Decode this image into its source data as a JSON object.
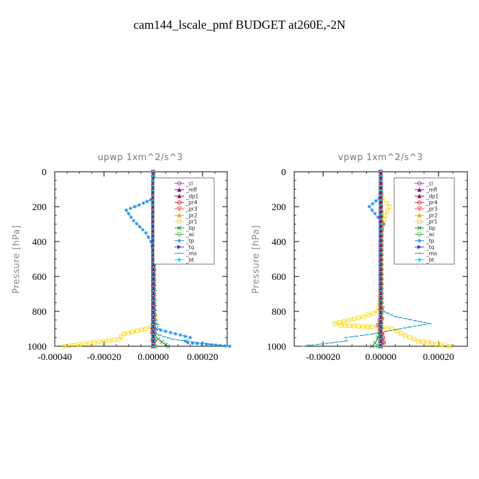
{
  "figure": {
    "title": "cam144_lscale_pmf  BUDGET at260E,-2N"
  },
  "legend_entries": [
    {
      "label": "_cl",
      "color": "#8e44ad",
      "marker": "circle"
    },
    {
      "label": "_mfl",
      "color": "#8b008b",
      "marker": "triangle"
    },
    {
      "label": "_dp1",
      "color": "#a0103a",
      "marker": "triangle"
    },
    {
      "label": "_pr4",
      "color": "#e0202a",
      "marker": "circle"
    },
    {
      "label": "_pr3",
      "color": "#ff4040",
      "marker": "triangle-down"
    },
    {
      "label": "_pr2",
      "color": "#ffa500",
      "marker": "triangle"
    },
    {
      "label": "_pr1",
      "color": "#ffd700",
      "marker": "square"
    },
    {
      "label": "_bp",
      "color": "#228b22",
      "marker": "x"
    },
    {
      "label": "_ac",
      "color": "#32cd32",
      "marker": "circle"
    },
    {
      "label": "_tp",
      "color": "#1e90ff",
      "marker": "star"
    },
    {
      "label": "_tq",
      "color": "#3a3acd",
      "marker": "triangle-right"
    },
    {
      "label": "_mo",
      "color": "#1a9ec9",
      "marker": "dash"
    },
    {
      "label": "_bt",
      "color": "#00e5ee",
      "marker": "diamond"
    }
  ],
  "chart_data": [
    {
      "type": "line",
      "title": "upwp   1xm^2/s^3",
      "ylabel": "Pressure [hPa]",
      "xlabel": "",
      "xlim": [
        -0.0004,
        0.0003
      ],
      "ylim": [
        1000,
        0
      ],
      "xticks": [
        "-0.00040",
        "-0.00020",
        "0.00000",
        "0.00020"
      ],
      "xtick_values": [
        -0.0004,
        -0.0002,
        0.0,
        0.0002
      ],
      "yticks": [
        "0",
        "200",
        "400",
        "600",
        "800",
        "1000"
      ],
      "ytick_values": [
        0,
        200,
        400,
        600,
        800,
        1000
      ],
      "legend_position": "upper-right",
      "series": [
        {
          "name": "_pr1",
          "x": [
            0,
            5e-06,
            2e-05,
            3e-05,
            1e-05,
            0,
            0,
            0,
            1e-05,
            1e-05,
            -3e-05,
            -0.00012,
            -0.00014,
            -0.00036
          ],
          "y": [
            100,
            150,
            180,
            230,
            280,
            350,
            500,
            800,
            850,
            880,
            900,
            930,
            960,
            1000
          ]
        },
        {
          "name": "_tp",
          "x": [
            0,
            5e-06,
            -4e-05,
            -0.00011,
            -8e-05,
            -3e-05,
            -1e-05,
            0,
            0,
            0,
            1e-05,
            0.00015,
            0.00013,
            0.00014,
            0.00031
          ],
          "y": [
            100,
            150,
            180,
            220,
            280,
            350,
            400,
            450,
            800,
            850,
            900,
            950,
            970,
            980,
            1000
          ]
        },
        {
          "name": "_mo",
          "x": [
            0,
            0,
            1e-05,
            2e-05,
            1e-05,
            8e-05,
            0.0003
          ],
          "y": [
            100,
            400,
            850,
            900,
            930,
            960,
            1000
          ]
        },
        {
          "name": "_bp",
          "x": [
            0,
            0,
            5e-06,
            2e-05,
            5e-05,
            6e-05
          ],
          "y": [
            100,
            900,
            930,
            960,
            990,
            1000
          ]
        },
        {
          "name": "_ac",
          "x": [
            0,
            0,
            5e-06,
            1e-05
          ],
          "y": [
            100,
            900,
            960,
            1000
          ]
        },
        {
          "name": "_pr2",
          "x": [
            0,
            5e-06,
            5e-06,
            0
          ],
          "y": [
            100,
            250,
            800,
            1000
          ]
        },
        {
          "name": "_pr4",
          "x": [
            0,
            0,
            -5e-06,
            5e-06,
            0
          ],
          "y": [
            0,
            850,
            920,
            970,
            1000
          ]
        },
        {
          "name": "_pr3",
          "x": [
            0,
            0,
            5e-06,
            -5e-06,
            0
          ],
          "y": [
            0,
            850,
            920,
            970,
            1000
          ]
        },
        {
          "name": "_cl",
          "x": [
            0,
            0
          ],
          "y": [
            0,
            1000
          ]
        },
        {
          "name": "_mfl",
          "x": [
            0,
            0
          ],
          "y": [
            0,
            1000
          ]
        },
        {
          "name": "_dp1",
          "x": [
            0,
            0
          ],
          "y": [
            0,
            1000
          ]
        },
        {
          "name": "_tq",
          "x": [
            0,
            0
          ],
          "y": [
            0,
            1000
          ]
        },
        {
          "name": "_bt",
          "x": [
            0,
            0
          ],
          "y": [
            0,
            1000
          ]
        }
      ]
    },
    {
      "type": "line",
      "title": "vpwp   1xm^2/s^3",
      "ylabel": "Pressure [hPa]",
      "xlabel": "",
      "xlim": [
        -0.0003,
        0.0003
      ],
      "ylim": [
        1000,
        0
      ],
      "xticks": [
        "-0.00020",
        "0.00000",
        "0.00020"
      ],
      "xtick_values": [
        -0.0002,
        0.0,
        0.0002
      ],
      "yticks": [
        "0",
        "200",
        "400",
        "600",
        "800",
        "1000"
      ],
      "ytick_values": [
        0,
        200,
        400,
        600,
        800,
        1000
      ],
      "legend_position": "upper-right",
      "series": [
        {
          "name": "_pr1",
          "x": [
            0,
            5e-06,
            2e-05,
            3e-05,
            1.5e-05,
            0,
            0,
            -1e-05,
            -6e-05,
            -0.00016,
            -0.00014,
            -3e-05,
            4e-05,
            0.0001,
            0.00013,
            0.00024
          ],
          "y": [
            100,
            150,
            180,
            200,
            250,
            350,
            700,
            800,
            830,
            870,
            880,
            890,
            900,
            950,
            970,
            1000
          ]
        },
        {
          "name": "_tp",
          "x": [
            0,
            -5e-06,
            -4e-05,
            -2e-05,
            1e-05,
            5e-06,
            0
          ],
          "y": [
            100,
            150,
            200,
            240,
            300,
            330,
            400
          ]
        },
        {
          "name": "_mo",
          "x": [
            0,
            0,
            1e-05,
            5e-05,
            0.00017,
            0.0001,
            -3e-05,
            -0.00012,
            -0.00012,
            -0.00027
          ],
          "y": [
            100,
            700,
            800,
            830,
            870,
            890,
            930,
            950,
            970,
            1000
          ]
        },
        {
          "name": "_bp",
          "x": [
            0,
            0,
            -1e-05,
            -2e-05,
            -3e-05
          ],
          "y": [
            100,
            900,
            950,
            980,
            1000
          ]
        },
        {
          "name": "_ac",
          "x": [
            0,
            0,
            -5e-06,
            -1e-05
          ],
          "y": [
            100,
            900,
            960,
            1000
          ]
        },
        {
          "name": "_pr4",
          "x": [
            0,
            0,
            -5e-06,
            -1e-05,
            5e-06,
            1e-05,
            0
          ],
          "y": [
            0,
            820,
            850,
            880,
            930,
            980,
            1000
          ]
        },
        {
          "name": "_pr3",
          "x": [
            0,
            0,
            5e-06,
            -5e-06,
            5e-06,
            1e-05,
            0
          ],
          "y": [
            0,
            820,
            850,
            880,
            930,
            980,
            1000
          ]
        },
        {
          "name": "_pr2",
          "x": [
            0,
            5e-06,
            5e-06,
            0
          ],
          "y": [
            100,
            250,
            800,
            1000
          ]
        },
        {
          "name": "_cl",
          "x": [
            0,
            0
          ],
          "y": [
            0,
            1000
          ]
        },
        {
          "name": "_mfl",
          "x": [
            0,
            0
          ],
          "y": [
            0,
            1000
          ]
        },
        {
          "name": "_dp1",
          "x": [
            0,
            0
          ],
          "y": [
            0,
            1000
          ]
        },
        {
          "name": "_tq",
          "x": [
            0,
            0
          ],
          "y": [
            0,
            1000
          ]
        },
        {
          "name": "_bt",
          "x": [
            0,
            0
          ],
          "y": [
            0,
            1000
          ]
        }
      ]
    }
  ]
}
